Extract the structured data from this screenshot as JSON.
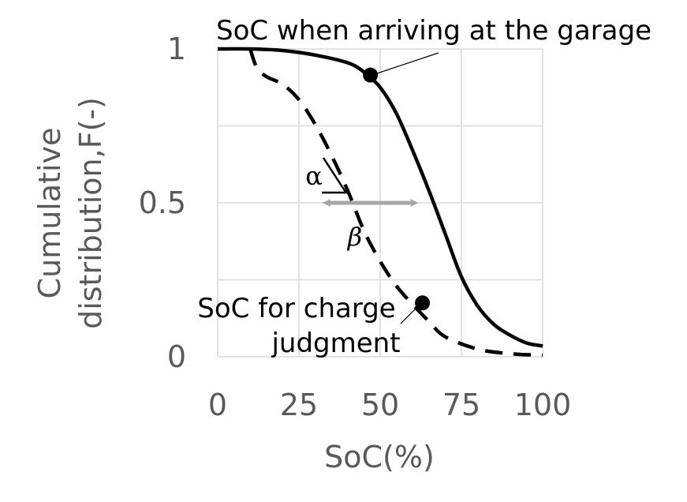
{
  "chart_data": {
    "type": "line",
    "title": "",
    "xlabel": "SoC(%)",
    "ylabel": "Cumulative distribution,F(-)",
    "xlim": [
      0,
      100
    ],
    "ylim": [
      0,
      1
    ],
    "x_ticks": [
      "0",
      "25",
      "50",
      "75",
      "100"
    ],
    "y_ticks": [
      "0",
      "0.5",
      "1"
    ],
    "grid": true,
    "series": [
      {
        "style": "solid",
        "color": "#000000",
        "points": [
          [
            0,
            1.0
          ],
          [
            10,
            1.0
          ],
          [
            20,
            0.995
          ],
          [
            30,
            0.98
          ],
          [
            40,
            0.955
          ],
          [
            45,
            0.925
          ],
          [
            50,
            0.875
          ],
          [
            55,
            0.79
          ],
          [
            60,
            0.67
          ],
          [
            65,
            0.54
          ],
          [
            70,
            0.4
          ],
          [
            75,
            0.26
          ],
          [
            80,
            0.165
          ],
          [
            85,
            0.105
          ],
          [
            90,
            0.07
          ],
          [
            95,
            0.045
          ],
          [
            100,
            0.035
          ]
        ]
      },
      {
        "style": "dashed",
        "color": "#000000",
        "points": [
          [
            10,
            1.0
          ],
          [
            12,
            0.94
          ],
          [
            15,
            0.91
          ],
          [
            20,
            0.885
          ],
          [
            25,
            0.835
          ],
          [
            30,
            0.755
          ],
          [
            35,
            0.655
          ],
          [
            40,
            0.54
          ],
          [
            45,
            0.41
          ],
          [
            50,
            0.31
          ],
          [
            55,
            0.23
          ],
          [
            60,
            0.17
          ],
          [
            65,
            0.115
          ],
          [
            70,
            0.065
          ],
          [
            80,
            0.025
          ],
          [
            90,
            0.01
          ],
          [
            100,
            0.005
          ]
        ]
      }
    ],
    "markers": [
      {
        "x": 47,
        "y": 0.915
      },
      {
        "x": 63,
        "y": 0.175
      }
    ],
    "annotations": {
      "upper_label": "SoC when arriving at the garage",
      "lower_label_line1": "SoC for charge",
      "lower_label_line2": "judgment",
      "alpha": "α",
      "beta": "β"
    },
    "arrow": {
      "x1": 32,
      "x2": 62,
      "y": 0.5,
      "color": "#A6A6A6"
    }
  }
}
